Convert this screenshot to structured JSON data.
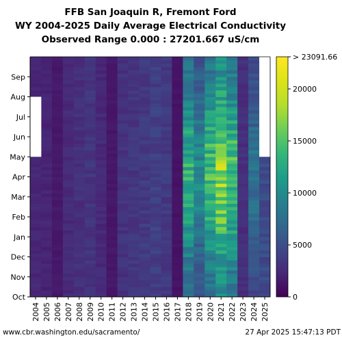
{
  "page": {
    "footer_left": "www.cbr.washington.edu/sacramento/",
    "footer_right": "27 Apr 2025 15:47:13 PDT"
  },
  "chart_data": {
    "type": "heatmap",
    "title_lines": [
      "FFB San Joaquin R, Fremont Ford",
      "WY 2004-2025 Daily Average Electrical Conductivity",
      "Observed Range 0.000 : 27201.667 uS/cm"
    ],
    "x_categories": [
      "2004",
      "2005",
      "2006",
      "2007",
      "2008",
      "2009",
      "2010",
      "2011",
      "2012",
      "2013",
      "2014",
      "2015",
      "2016",
      "2017",
      "2018",
      "2019",
      "2020",
      "2021",
      "2022",
      "2023",
      "2024",
      "2025"
    ],
    "y_ticks": [
      "Oct",
      "Nov",
      "Dec",
      "Jan",
      "Feb",
      "Mar",
      "Apr",
      "May",
      "Jun",
      "Jul",
      "Aug",
      "Sep"
    ],
    "colorbar": {
      "colormap": "viridis",
      "min": 0,
      "max": 23091.66,
      "ticks": [
        0,
        5000,
        10000,
        15000,
        20000
      ],
      "tick_labels": [
        "0",
        "5000",
        "10000",
        "15000",
        "20000"
      ],
      "max_label": "> 23091.66"
    },
    "year_levels": {
      "2004": 2200,
      "2005": 2100,
      "2006": 1400,
      "2007": 2500,
      "2008": 2800,
      "2009": 3200,
      "2010": 2400,
      "2011": 1300,
      "2012": 3000,
      "2013": 3300,
      "2014": 3600,
      "2015": 3900,
      "2016": 3500,
      "2017": 1100,
      "2018": 11500,
      "2019": 8500,
      "2020": 12500,
      "2021": 15500,
      "2022": 12500,
      "2023": 2800,
      "2024": 7000,
      "2025": 4800
    },
    "missing_data": [
      {
        "year": "2004",
        "from_month": "May",
        "to_month": "Jul"
      },
      {
        "year": "2025",
        "from_month": "May",
        "to_month": "Sep"
      }
    ],
    "grid": false
  }
}
